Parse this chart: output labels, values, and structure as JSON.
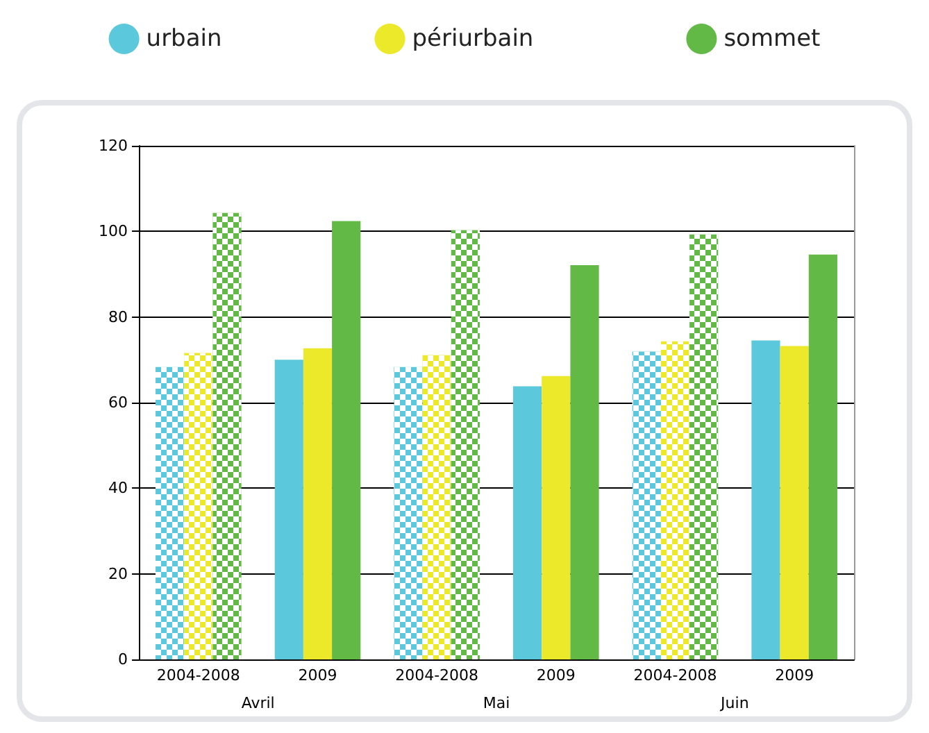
{
  "chart_data": {
    "type": "bar",
    "categories": [
      "2004-2008",
      "2009",
      "2004-2008",
      "2009",
      "2004-2008",
      "2009"
    ],
    "series": [
      {
        "name": "urbain",
        "color": "#5bc8dc",
        "values": [
          68.3,
          70,
          68.3,
          63.8,
          71.9,
          74.5
        ]
      },
      {
        "name": "périurbain",
        "color": "#ece82a",
        "values": [
          71.6,
          72.7,
          71.1,
          66.2,
          74.3,
          73.2
        ]
      },
      {
        "name": "sommet",
        "color": "#62b946",
        "values": [
          104.3,
          102.4,
          100.3,
          92.1,
          99.3,
          94.6
        ]
      }
    ],
    "annotations": [
      "Avril",
      "Mai",
      "Juin"
    ],
    "ylim": [
      0,
      120
    ],
    "yticks": [
      0,
      20,
      40,
      60,
      80,
      100,
      120
    ],
    "grid": "y",
    "legend": "top"
  }
}
